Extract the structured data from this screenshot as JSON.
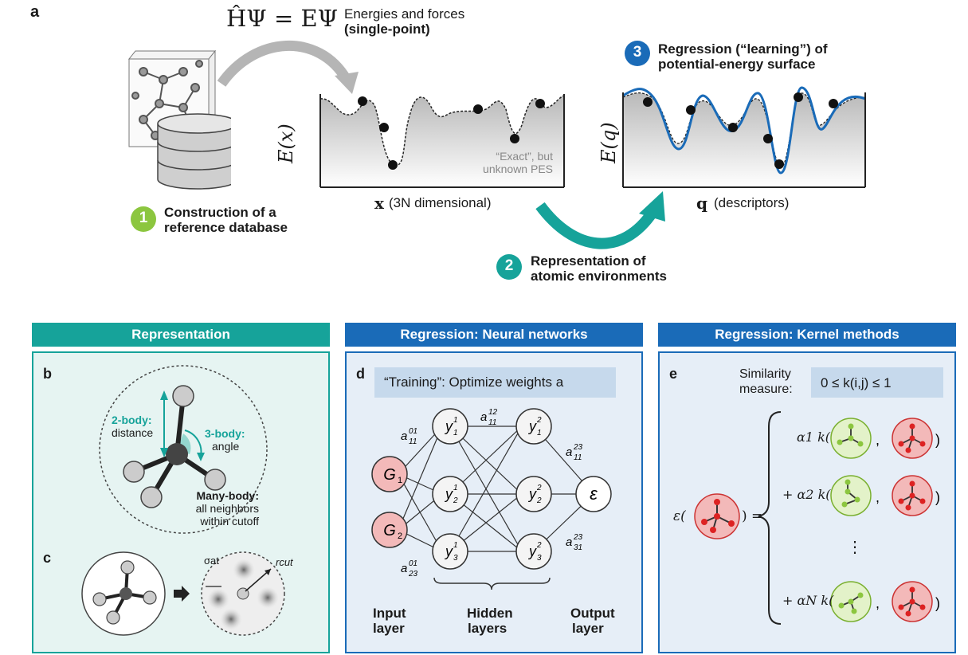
{
  "colors": {
    "teal": "#16a39a",
    "blue": "#1a6bb8",
    "green": "#8cc63f",
    "red_node": "#f3b9b9",
    "panel_fill_teal": "#e6f4f2",
    "panel_fill_blue": "#e6eef7"
  },
  "top": {
    "label_a": "a",
    "schrodinger": "ĤΨ = EΨ",
    "energies_line1": "Energies and forces",
    "energies_line2": "(single-point)",
    "step1_number": "1",
    "step1_line1": "Construction of a",
    "step1_line2": "reference database",
    "exact_line1": "“Exact”, but",
    "exact_line2": "unknown PES",
    "ex_label": "E(x)",
    "x_axis_symbol": "x",
    "x_axis_text": "(3N dimensional)",
    "step3_number": "3",
    "step3_line1": "Regression (“learning”) of",
    "step3_line2": "potential-energy surface",
    "eq_label": "E(q)",
    "q_axis_symbol": "q",
    "q_axis_text": "(descriptors)",
    "step2_number": "2",
    "step2_line1": "Representation of",
    "step2_line2": "atomic environments"
  },
  "panels": {
    "representation": {
      "header": "Representation",
      "label_b": "b",
      "two_body_title": "2-body:",
      "two_body_sub": "distance",
      "three_body_title": "3-body:",
      "three_body_sub": "angle",
      "many_body_title": "Many-body:",
      "many_body_line2": "all neighbors",
      "many_body_line3": "within cutoff",
      "label_c": "c",
      "sigma_label": "σat",
      "rcut_label": "rcut"
    },
    "neural": {
      "header": "Regression: Neural networks",
      "label_d": "d",
      "training_text": "“Training”: Optimize weights a",
      "input_nodes": [
        "G1",
        "G2"
      ],
      "hidden1_nodes": [
        "y11",
        "y21",
        "y31"
      ],
      "hidden2_nodes": [
        "y12",
        "y22",
        "y32"
      ],
      "output_node": "ε",
      "weights": [
        "a01 11",
        "a01 23",
        "a12 11",
        "a23 11",
        "a23 31"
      ],
      "input_label_1": "Input",
      "input_label_2": "layer",
      "hidden_label_1": "Hidden",
      "hidden_label_2": "layers",
      "output_label_1": "Output",
      "output_label_2": "layer"
    },
    "kernel": {
      "header": "Regression: Kernel methods",
      "label_e": "e",
      "similarity_line1": "Similarity",
      "similarity_line2": "measure:",
      "similarity_formula": "0 ≤ k(i,j) ≤ 1",
      "lhs": "ε(",
      "lhs_close": ") =",
      "terms": [
        "α1 k(",
        "+ α2 k(",
        "+ αN k("
      ],
      "ellipsis": "⋮"
    }
  }
}
